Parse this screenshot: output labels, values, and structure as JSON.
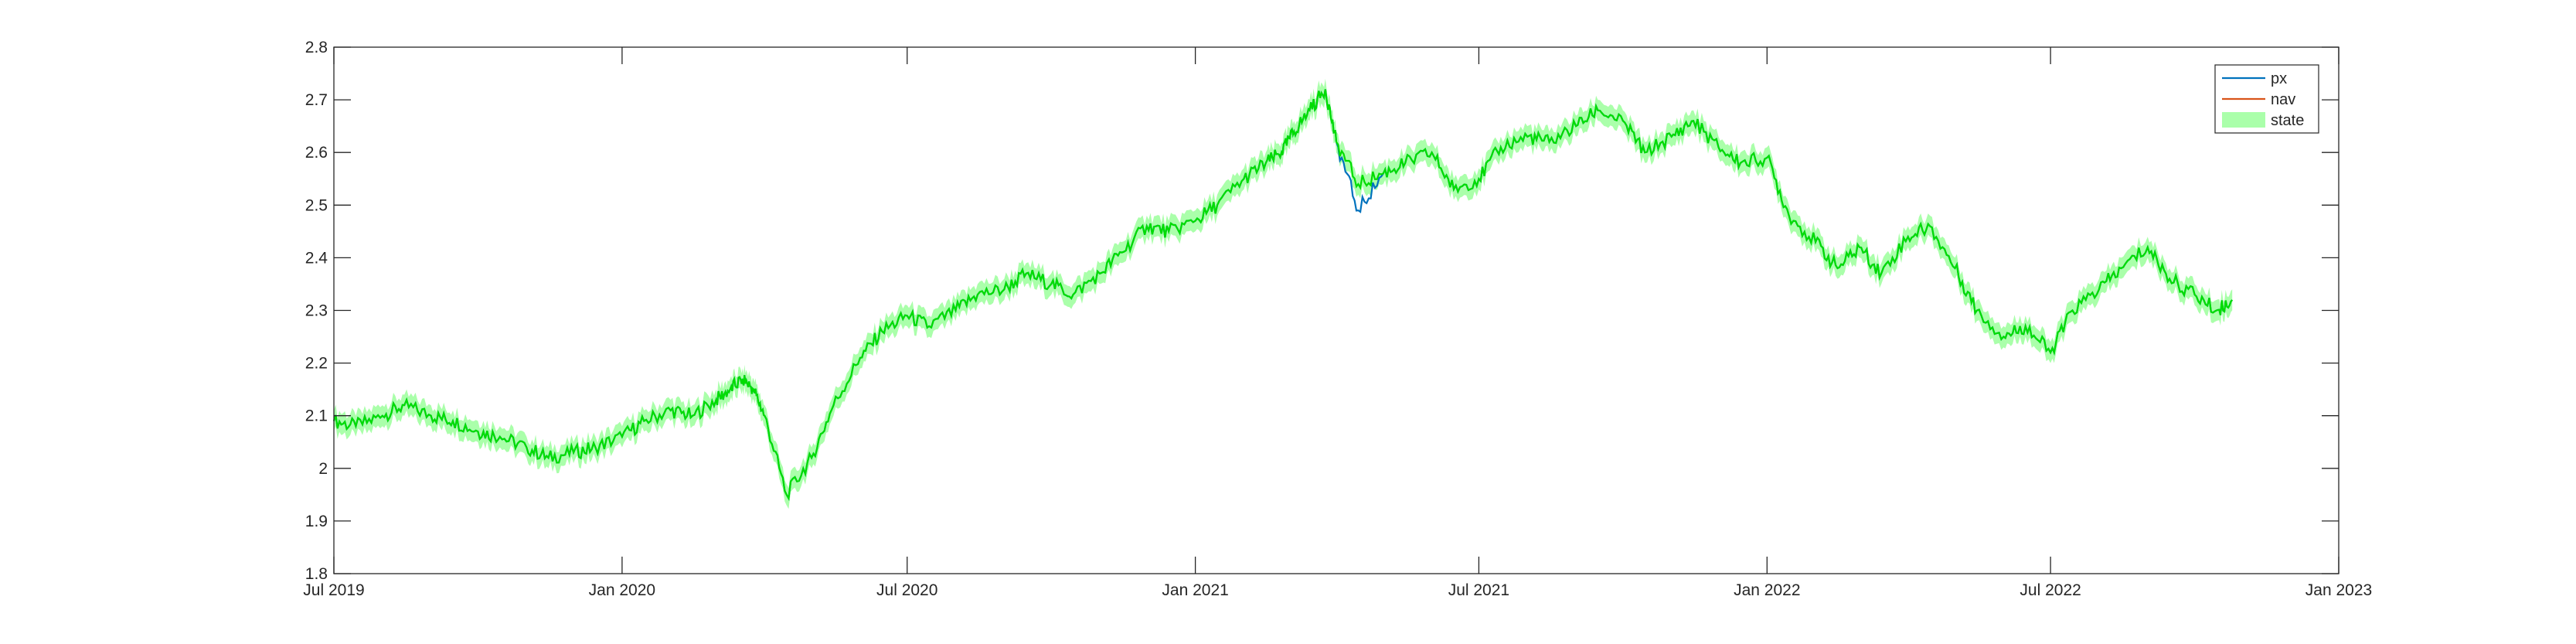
{
  "chart_data": {
    "type": "line",
    "title": "",
    "xlabel": "",
    "ylabel": "",
    "xlim": [
      "2019-07-01",
      "2023-01-01"
    ],
    "ylim": [
      1.8,
      2.8
    ],
    "x_ticks": [
      {
        "date": "2019-07-01",
        "label": "Jul 2019"
      },
      {
        "date": "2020-01-01",
        "label": "Jan 2020"
      },
      {
        "date": "2020-07-01",
        "label": "Jul 2020"
      },
      {
        "date": "2021-01-01",
        "label": "Jan 2021"
      },
      {
        "date": "2021-07-01",
        "label": "Jul 2021"
      },
      {
        "date": "2022-01-01",
        "label": "Jan 2022"
      },
      {
        "date": "2022-07-01",
        "label": "Jul 2022"
      },
      {
        "date": "2023-01-01",
        "label": "Jan 2023"
      }
    ],
    "y_ticks": [
      {
        "value": 1.8,
        "label": "1.8"
      },
      {
        "value": 1.9,
        "label": "1.9"
      },
      {
        "value": 2.0,
        "label": "2"
      },
      {
        "value": 2.1,
        "label": "2.1"
      },
      {
        "value": 2.2,
        "label": "2.2"
      },
      {
        "value": 2.3,
        "label": "2.3"
      },
      {
        "value": 2.4,
        "label": "2.4"
      },
      {
        "value": 2.5,
        "label": "2.5"
      },
      {
        "value": 2.6,
        "label": "2.6"
      },
      {
        "value": 2.7,
        "label": "2.7"
      },
      {
        "value": 2.8,
        "label": "2.8"
      }
    ],
    "grid": false,
    "legend": {
      "position": "top-right",
      "entries": [
        {
          "name": "px",
          "kind": "line",
          "color": "#0072BD"
        },
        {
          "name": "nav",
          "kind": "line",
          "color": "#D95319"
        },
        {
          "name": "state",
          "kind": "band",
          "color": "#AAFFAA"
        }
      ]
    },
    "state_line_color": "#00DD00",
    "band_half_width": 0.02,
    "x": [
      "2019-07-01",
      "2019-07-15",
      "2019-08-01",
      "2019-08-15",
      "2019-09-01",
      "2019-09-15",
      "2019-10-01",
      "2019-10-15",
      "2019-11-01",
      "2019-11-15",
      "2019-12-01",
      "2019-12-15",
      "2020-01-01",
      "2020-01-15",
      "2020-02-01",
      "2020-02-15",
      "2020-03-01",
      "2020-03-10",
      "2020-03-18",
      "2020-03-25",
      "2020-04-01",
      "2020-04-15",
      "2020-05-01",
      "2020-05-15",
      "2020-06-01",
      "2020-06-15",
      "2020-07-01",
      "2020-07-15",
      "2020-08-01",
      "2020-08-15",
      "2020-09-01",
      "2020-09-15",
      "2020-10-01",
      "2020-10-15",
      "2020-11-01",
      "2020-11-15",
      "2020-12-01",
      "2020-12-15",
      "2021-01-01",
      "2021-01-15",
      "2021-02-01",
      "2021-02-15",
      "2021-02-25",
      "2021-03-05",
      "2021-03-15",
      "2021-03-25",
      "2021-04-01",
      "2021-04-15",
      "2021-05-01",
      "2021-05-15",
      "2021-06-01",
      "2021-06-15",
      "2021-07-01",
      "2021-07-15",
      "2021-08-01",
      "2021-08-15",
      "2021-09-01",
      "2021-09-15",
      "2021-10-01",
      "2021-10-15",
      "2021-11-01",
      "2021-11-15",
      "2021-12-01",
      "2021-12-15",
      "2022-01-01",
      "2022-01-15",
      "2022-02-01",
      "2022-02-15",
      "2022-03-01",
      "2022-03-15",
      "2022-04-01",
      "2022-04-15",
      "2022-05-01",
      "2022-05-15",
      "2022-06-01",
      "2022-06-15",
      "2022-07-01",
      "2022-07-15",
      "2022-08-01",
      "2022-08-15",
      "2022-09-01",
      "2022-09-15",
      "2022-10-01",
      "2022-10-15",
      "2022-10-25"
    ],
    "series": [
      {
        "name": "px",
        "color": "#0072BD",
        "values": [
          2.09,
          2.08,
          2.1,
          2.12,
          2.1,
          2.09,
          2.07,
          2.06,
          2.04,
          2.02,
          2.03,
          2.04,
          2.06,
          2.09,
          2.11,
          2.1,
          2.13,
          2.15,
          2.17,
          2.15,
          2.1,
          1.95,
          2.02,
          2.12,
          2.21,
          2.26,
          2.29,
          2.27,
          2.3,
          2.33,
          2.34,
          2.37,
          2.35,
          2.33,
          2.37,
          2.41,
          2.46,
          2.45,
          2.47,
          2.5,
          2.55,
          2.58,
          2.6,
          2.64,
          2.68,
          2.72,
          2.62,
          2.49,
          2.56,
          2.58,
          2.6,
          2.53,
          2.55,
          2.61,
          2.63,
          2.62,
          2.65,
          2.68,
          2.66,
          2.6,
          2.63,
          2.66,
          2.61,
          2.58,
          2.59,
          2.48,
          2.43,
          2.38,
          2.42,
          2.37,
          2.44,
          2.46,
          2.38,
          2.3,
          2.25,
          2.27,
          2.22,
          2.3,
          2.34,
          2.38,
          2.42,
          2.36,
          2.33,
          2.3,
          2.32
        ]
      },
      {
        "name": "state",
        "color": "#00DD00",
        "values": [
          2.09,
          2.08,
          2.1,
          2.12,
          2.1,
          2.09,
          2.07,
          2.06,
          2.04,
          2.02,
          2.03,
          2.04,
          2.06,
          2.09,
          2.11,
          2.1,
          2.13,
          2.15,
          2.17,
          2.15,
          2.1,
          1.95,
          2.02,
          2.12,
          2.21,
          2.26,
          2.29,
          2.27,
          2.3,
          2.33,
          2.34,
          2.37,
          2.35,
          2.33,
          2.37,
          2.41,
          2.46,
          2.45,
          2.47,
          2.5,
          2.55,
          2.58,
          2.6,
          2.64,
          2.68,
          2.72,
          2.62,
          2.54,
          2.56,
          2.58,
          2.6,
          2.53,
          2.55,
          2.61,
          2.63,
          2.62,
          2.65,
          2.68,
          2.66,
          2.6,
          2.63,
          2.66,
          2.61,
          2.58,
          2.59,
          2.48,
          2.43,
          2.38,
          2.42,
          2.37,
          2.44,
          2.46,
          2.38,
          2.3,
          2.25,
          2.27,
          2.22,
          2.3,
          2.34,
          2.38,
          2.42,
          2.36,
          2.33,
          2.3,
          2.32
        ]
      }
    ]
  }
}
